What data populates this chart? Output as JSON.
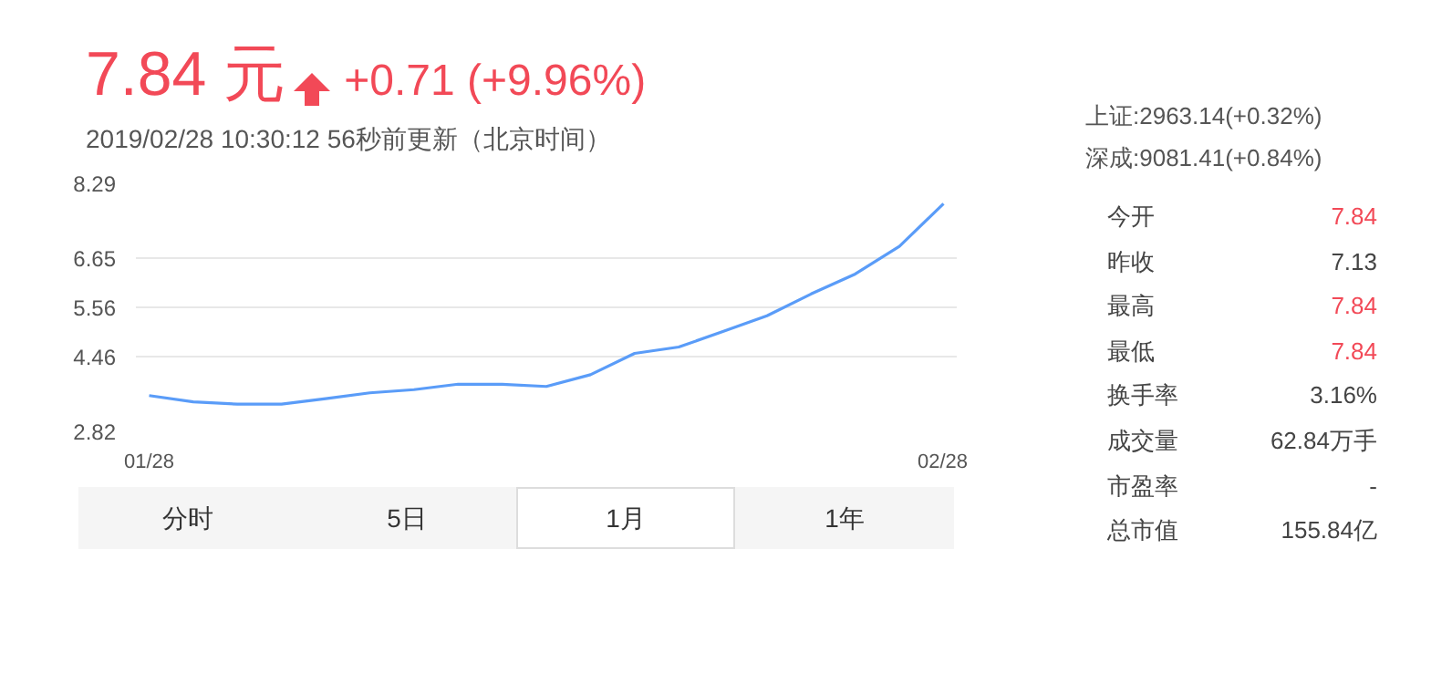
{
  "chart_data": {
    "type": "line",
    "title": "7.84 元",
    "subtitle": "2019/02/28 10:30:12  56秒前更新（北京时间）",
    "categories": [
      "01/28",
      null,
      null,
      null,
      null,
      null,
      null,
      null,
      null,
      null,
      null,
      null,
      null,
      null,
      null,
      null,
      null,
      null,
      "02/28"
    ],
    "series": [
      {
        "color": "#5a9cf8",
        "values": [
          3.61,
          3.47,
          3.42,
          3.42,
          3.54,
          3.67,
          3.74,
          3.86,
          3.86,
          3.81,
          4.07,
          4.54,
          4.68,
          5.02,
          5.37,
          5.85,
          6.29,
          6.9,
          7.84
        ]
      }
    ],
    "ylim": [
      2.82,
      8.29
    ],
    "yticks": [
      2.82,
      4.46,
      5.56,
      6.65,
      8.29
    ],
    "grid": "y",
    "marker": "none",
    "line_style": "solid",
    "annotations": [
      "+0.71 (+9.96%)",
      "上证:2963.14(+0.32%)",
      "深成:9081.41(+0.84%)",
      "今开",
      "7.84",
      "昨收",
      "7.13",
      "最高",
      "7.84",
      "最低",
      "7.84",
      "换手率",
      "3.16%",
      "成交量",
      "62.84万手",
      "市盈率",
      "-",
      "总市值",
      "155.84亿",
      "分时",
      "5日",
      "1月",
      "1年"
    ]
  }
}
